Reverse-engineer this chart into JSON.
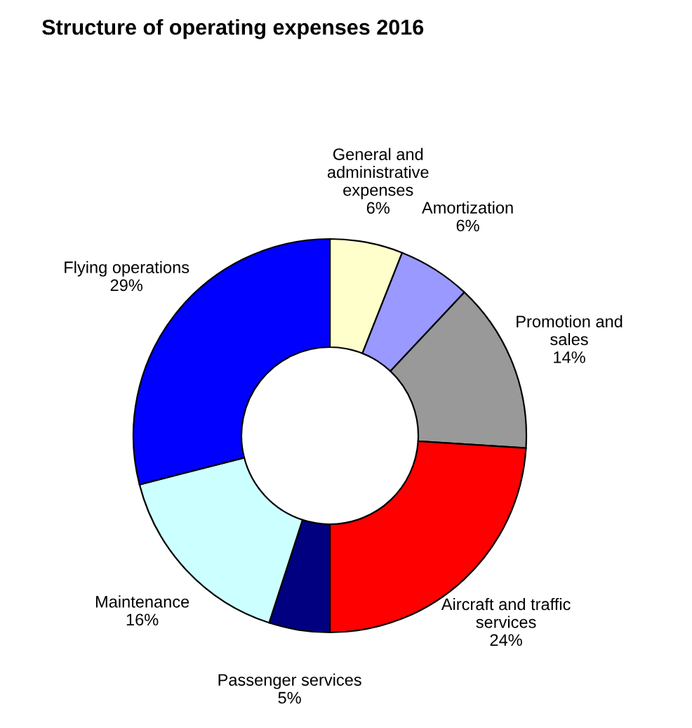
{
  "chart_data": {
    "type": "donut",
    "title": "Structure of operating expenses 2016",
    "categories": [
      "General and\nadministrative\nexpenses",
      "Amortization",
      "Promotion and\nsales",
      "Aircraft and traffic\nservices",
      "Passenger services",
      "Maintenance",
      "Flying operations"
    ],
    "values": [
      6,
      6,
      14,
      24,
      5,
      16,
      29
    ],
    "value_labels": [
      "6%",
      "6%",
      "14%",
      "24%",
      "5%",
      "16%",
      "29%"
    ],
    "colors": [
      "#ffffcc",
      "#9999ff",
      "#999999",
      "#ff0000",
      "#000080",
      "#ccffff",
      "#0000ff"
    ],
    "legend": false
  }
}
